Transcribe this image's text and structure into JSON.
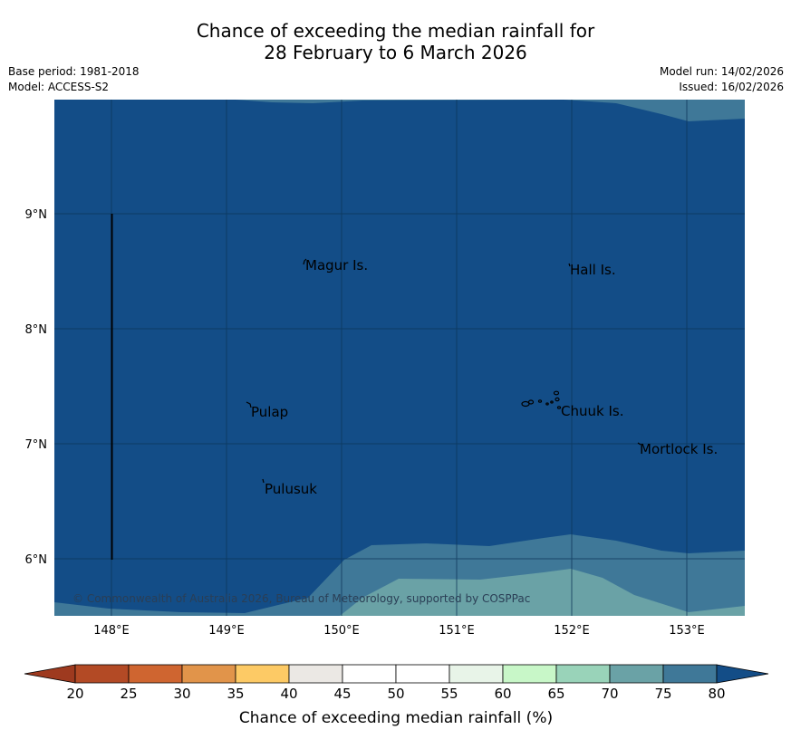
{
  "title": {
    "line1": "Chance of exceeding the median rainfall for",
    "line2": "28 February to 6 March 2026"
  },
  "meta": {
    "base_period": "Base period: 1981-2018",
    "model": "Model: ACCESS-S2",
    "model_run": "Model run: 14/02/2026",
    "issued": "Issued: 16/02/2026"
  },
  "map": {
    "latitude_labels": [
      "9°N",
      "8°N",
      "7°N",
      "6°N"
    ],
    "longitude_labels": [
      "148°E",
      "149°E",
      "150°E",
      "151°E",
      "152°E",
      "153°E"
    ],
    "places": [
      "Magur Is.",
      "Hall Is.",
      "Pulap",
      "Chuuk Is.",
      "Mortlock Is.",
      "Pulusuk"
    ],
    "copyright": "© Commonwealth of Australia 2026, Bureau of Meteorology, supported by COSPPac",
    "colors": {
      "band_80_plus": "#134d87",
      "band_75_80": "#3f7898",
      "band_70_75": "#6aa2a6"
    }
  },
  "colorbar": {
    "ticks": [
      "20",
      "25",
      "30",
      "35",
      "40",
      "45",
      "50",
      "55",
      "60",
      "65",
      "70",
      "75",
      "80"
    ],
    "colors": [
      "#9e3a1f",
      "#b34a25",
      "#cf6530",
      "#e1944a",
      "#fdca65",
      "#ebe8e4",
      "#ffffff",
      "#ffffff",
      "#e8f4e8",
      "#c8f7c8",
      "#99d3b9",
      "#6aa2a6",
      "#3f7898",
      "#134d87"
    ],
    "label": "Chance of exceeding median rainfall (%)"
  }
}
